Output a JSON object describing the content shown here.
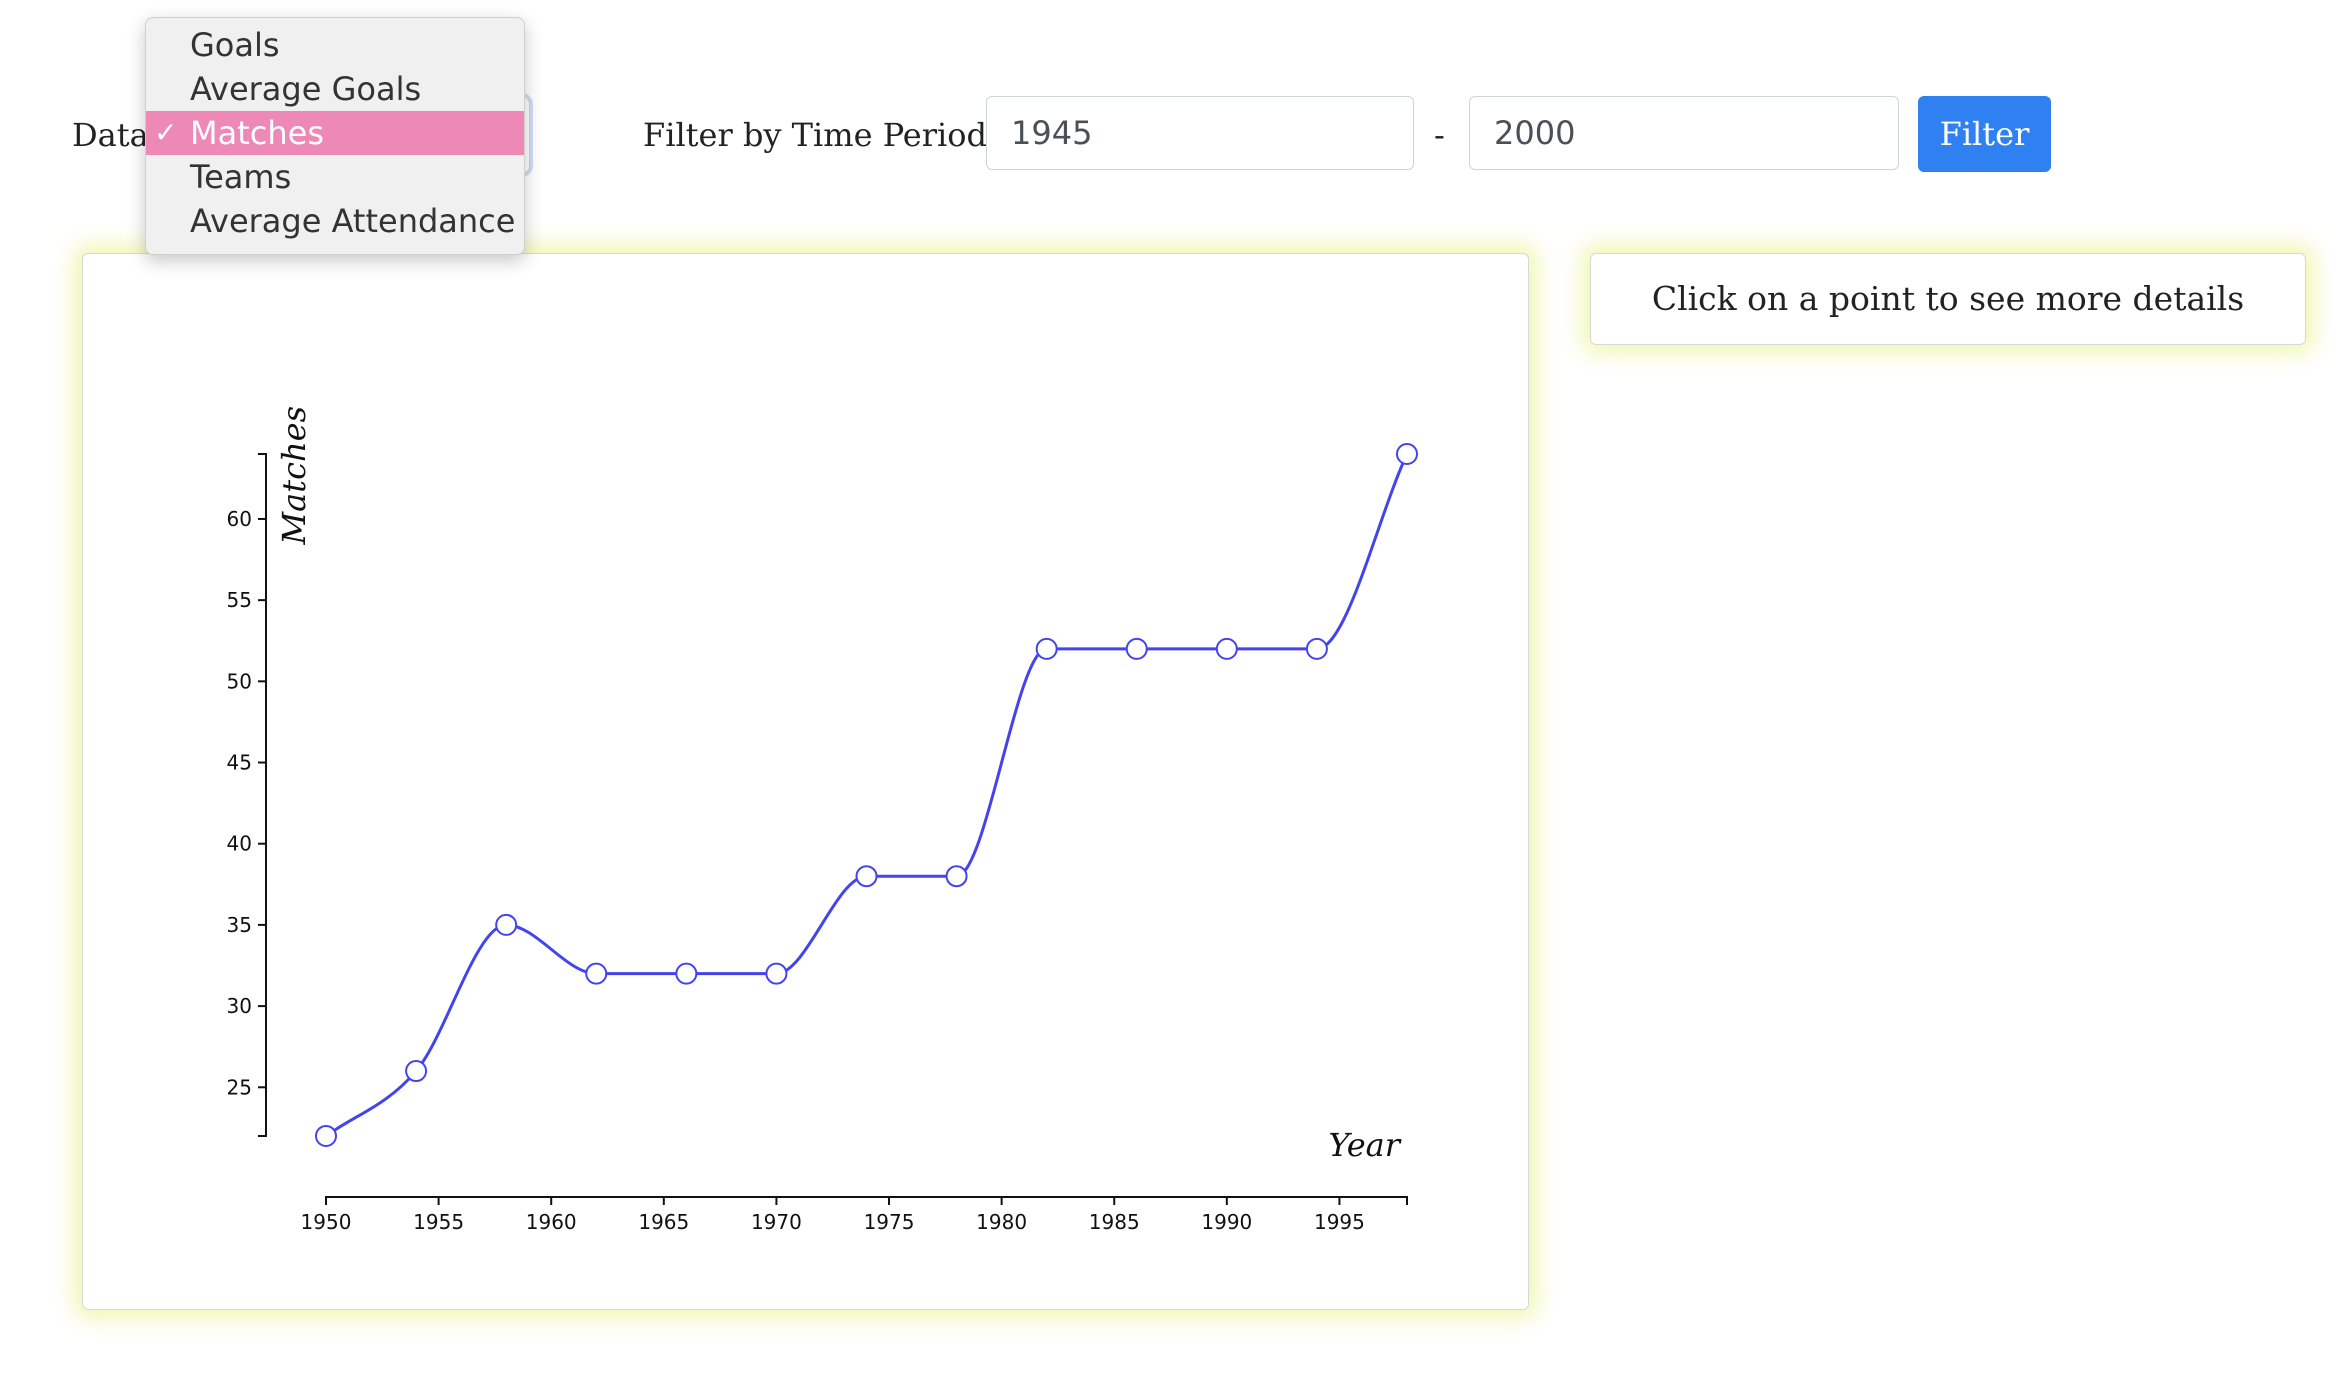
{
  "controls": {
    "data_label": "Data:",
    "data_options": [
      "Goals",
      "Average Goals",
      "Matches",
      "Teams",
      "Average Attendance"
    ],
    "data_selected": "Matches",
    "check_glyph": "✓",
    "filter_label": "Filter by Time Period:",
    "start_value": "1945",
    "end_value": "2000",
    "separator": "-",
    "filter_button": "Filter"
  },
  "details": {
    "placeholder": "Click on a point to see more details"
  },
  "colors": {
    "line": "#4444ee",
    "selected_option": "#ee88b6",
    "filter_button": "#2f80f0",
    "card_glow": "#ecf396"
  },
  "chart_data": {
    "type": "line",
    "xlabel": "Year",
    "ylabel": "Matches",
    "x": [
      1950,
      1954,
      1958,
      1962,
      1966,
      1970,
      1974,
      1978,
      1982,
      1986,
      1990,
      1994,
      1998
    ],
    "values": [
      22,
      26,
      35,
      32,
      32,
      32,
      38,
      38,
      52,
      52,
      52,
      52,
      64
    ],
    "x_ticks": [
      1950,
      1955,
      1960,
      1965,
      1970,
      1975,
      1980,
      1985,
      1990,
      1995
    ],
    "y_ticks": [
      25,
      30,
      35,
      40,
      45,
      50,
      55,
      60
    ],
    "xlim": [
      1950,
      1998
    ],
    "ylim": [
      22,
      64
    ],
    "grid": false,
    "curve": "smooth",
    "markers": "hollow-circle"
  }
}
